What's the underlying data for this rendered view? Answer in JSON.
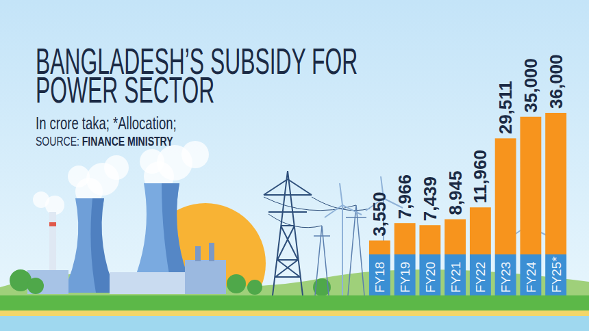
{
  "chart_data": {
    "type": "bar",
    "title": "BANGLADESH’S SUBSIDY FOR POWER SECTOR",
    "subtitle": "In crore taka; *Allocation;",
    "source": "SOURCE: FINANCE MINISTRY",
    "categories": [
      "FY18",
      "FY19",
      "FY20",
      "FY21",
      "FY22",
      "FY23",
      "FY24",
      "FY25*"
    ],
    "values": [
      3550,
      7966,
      7439,
      8945,
      11960,
      29511,
      35000,
      36000
    ],
    "value_labels": [
      "3,550",
      "7,966",
      "7,439",
      "8,945",
      "11,960",
      "29,511",
      "35,000",
      "36,000"
    ],
    "color": "#f7941d",
    "ylim": [
      0,
      36000
    ],
    "data_labels": true,
    "tick_labels": "x",
    "grid": false
  }
}
